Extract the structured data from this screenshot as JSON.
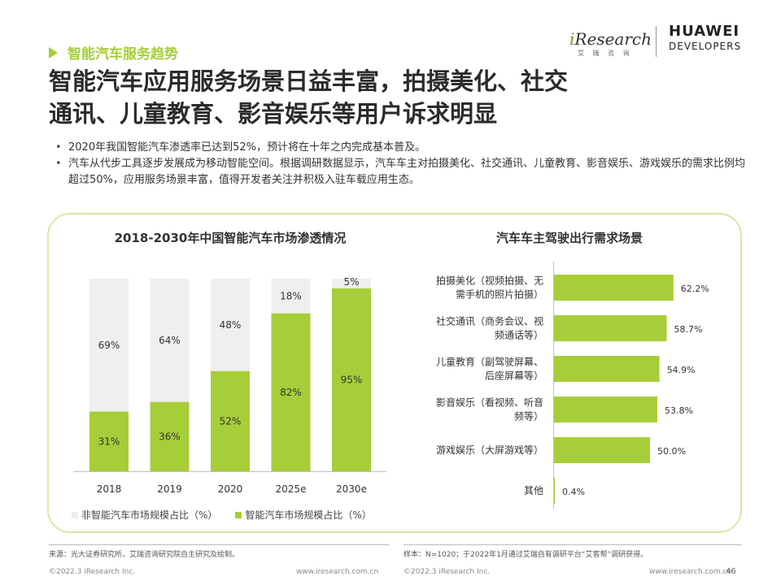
{
  "header": {
    "section_tag": "智能汽车服务趋势",
    "title_line1": "智能汽车应用服务场景日益丰富，拍摄美化、社交",
    "title_line2": "通讯、儿童教育、影音娱乐等用户诉求明显",
    "logo_iresearch_i": "i",
    "logo_iresearch_rest": "Research",
    "logo_iresearch_cn": "艾 瑞 咨 询",
    "logo_huawei_l1": "HUAWEI",
    "logo_huawei_l2": "DEVELOPERS"
  },
  "bullets": [
    "2020年我国智能汽车渗透率已达到52%，预计将在十年之内完成基本普及。",
    "汽车从代步工具逐步发展成为移动智能空间。根据调研数据显示，汽车车主对拍摄美化、社交通讯、儿童教育、影音娱乐、游戏娱乐的需求比例均超过50%，应用服务场景丰富，值得开发者关注并积极入驻车载应用生态。"
  ],
  "legend": {
    "non_smart": "非智能汽车市场规模占比（%）",
    "smart": "智能汽车市场规模占比（%）"
  },
  "colors": {
    "green": "#a6ce39",
    "gray": "#efefef",
    "accent": "#a6ce39"
  },
  "chart_data": [
    {
      "type": "bar",
      "stacked": true,
      "title": "2018-2030年中国智能汽车市场渗透情况",
      "categories": [
        "2018",
        "2019",
        "2020",
        "2025e",
        "2030e"
      ],
      "series": [
        {
          "name": "智能汽车市场规模占比（%）",
          "values": [
            31,
            36,
            52,
            82,
            95
          ],
          "labels": [
            "31%",
            "36%",
            "52%",
            "82%",
            "95%"
          ]
        },
        {
          "name": "非智能汽车市场规模占比（%）",
          "values": [
            69,
            64,
            48,
            18,
            5
          ],
          "labels": [
            "69%",
            "64%",
            "48%",
            "18%",
            "5%"
          ]
        }
      ],
      "ylim": [
        0,
        100
      ]
    },
    {
      "type": "bar",
      "orientation": "horizontal",
      "title": "汽车车主驾驶出行需求场景",
      "categories": [
        [
          "拍摄美化（视频拍摄、无",
          "需手机的照片拍摄）"
        ],
        [
          "社交通讯（商务会议、视",
          "频通话等）"
        ],
        [
          "儿童教育（副驾驶屏幕、",
          "后座屏幕等）"
        ],
        [
          "影音娱乐（看视频、听音",
          "频等）"
        ],
        [
          "游戏娱乐（大屏游戏等）"
        ],
        [
          "其他"
        ]
      ],
      "values": [
        62.2,
        58.7,
        54.9,
        53.8,
        50.0,
        0.4
      ],
      "labels": [
        "62.2%",
        "58.7%",
        "54.9%",
        "53.8%",
        "50.0%",
        "0.4%"
      ],
      "xlim": [
        0,
        100
      ]
    }
  ],
  "footer": {
    "source_left": "来源：光大证券研究所，艾瑞咨询研究院自主研究及绘制。",
    "source_right": "样本：N=1020；于2022年1月通过艾瑞自有调研平台“艾客帮”调研获得。",
    "copyright_left": "©2022.3 iResearch Inc.",
    "url_left": "www.iresearch.com.cn",
    "copyright_right": "©2022.3 iResearch Inc.",
    "url_right": "www.iresearch.com.cn",
    "page_number": "46"
  }
}
